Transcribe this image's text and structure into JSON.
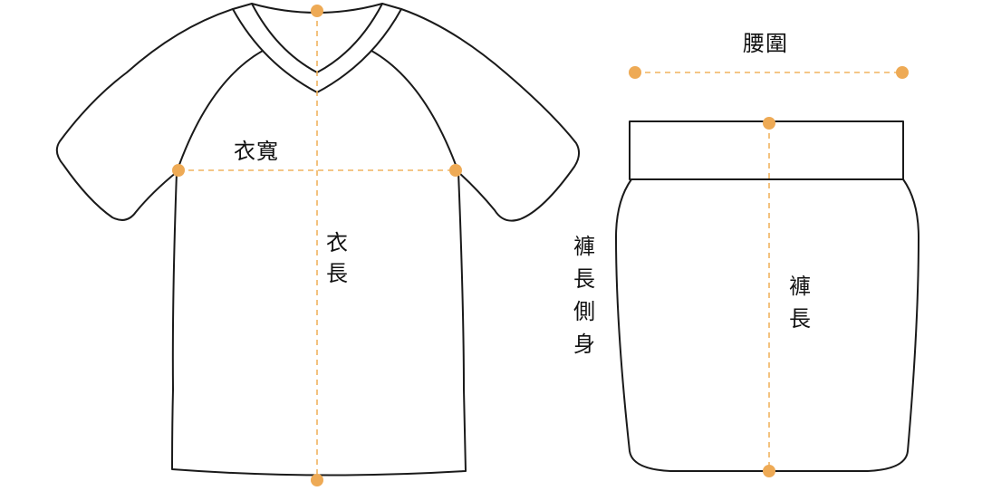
{
  "colors": {
    "outline": "#1a1a1a",
    "measure_line": "#f0b35e",
    "measure_point": "#eeaa55",
    "label_text": "#111111"
  },
  "shirt": {
    "width_label": "衣寬",
    "length_label_chars": [
      "衣",
      "長"
    ]
  },
  "pants": {
    "waist_label": "腰圍",
    "side_length_label_chars": [
      "褲",
      "長",
      "側",
      "身"
    ],
    "length_label_chars": [
      "褲",
      "長"
    ]
  }
}
